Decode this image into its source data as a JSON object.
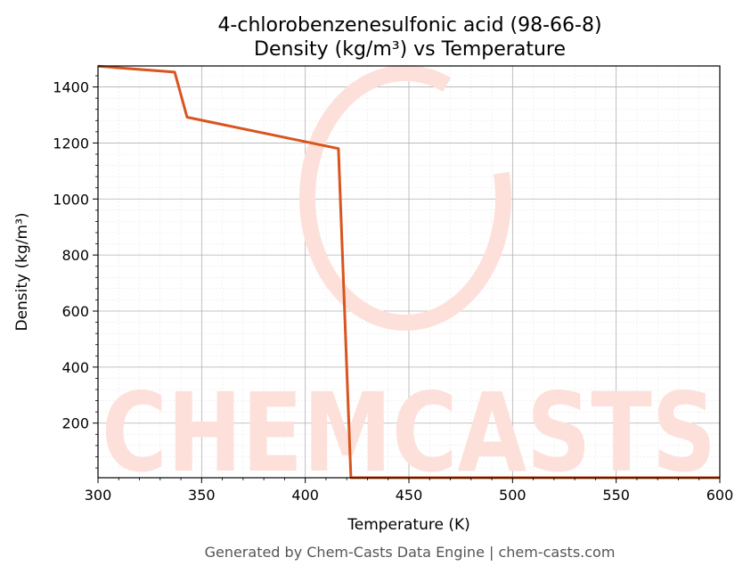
{
  "chart_data": {
    "type": "line",
    "title": "4-chlorobenzenesulfonic acid (98-66-8)",
    "subtitle": "Density (kg/m³) vs Temperature",
    "xlabel": "Temperature (K)",
    "ylabel": "Density (kg/m³)",
    "xlim": [
      300,
      600
    ],
    "ylim": [
      5,
      1475
    ],
    "x_ticks": [
      300,
      350,
      400,
      450,
      500,
      550,
      600
    ],
    "y_ticks": [
      200,
      400,
      600,
      800,
      1000,
      1200,
      1400
    ],
    "grid": true,
    "minor_grid": true,
    "legend": "none",
    "series": [
      {
        "color": "#d9541e",
        "x": [
          300,
          337,
          343,
          416,
          422,
          600
        ],
        "y": [
          1474,
          1453,
          1292,
          1180,
          5,
          5
        ]
      }
    ]
  },
  "watermark": {
    "text": "CHEMCASTS",
    "color": "#fde0da"
  },
  "footer": "Generated by Chem-Casts Data Engine | chem-casts.com"
}
